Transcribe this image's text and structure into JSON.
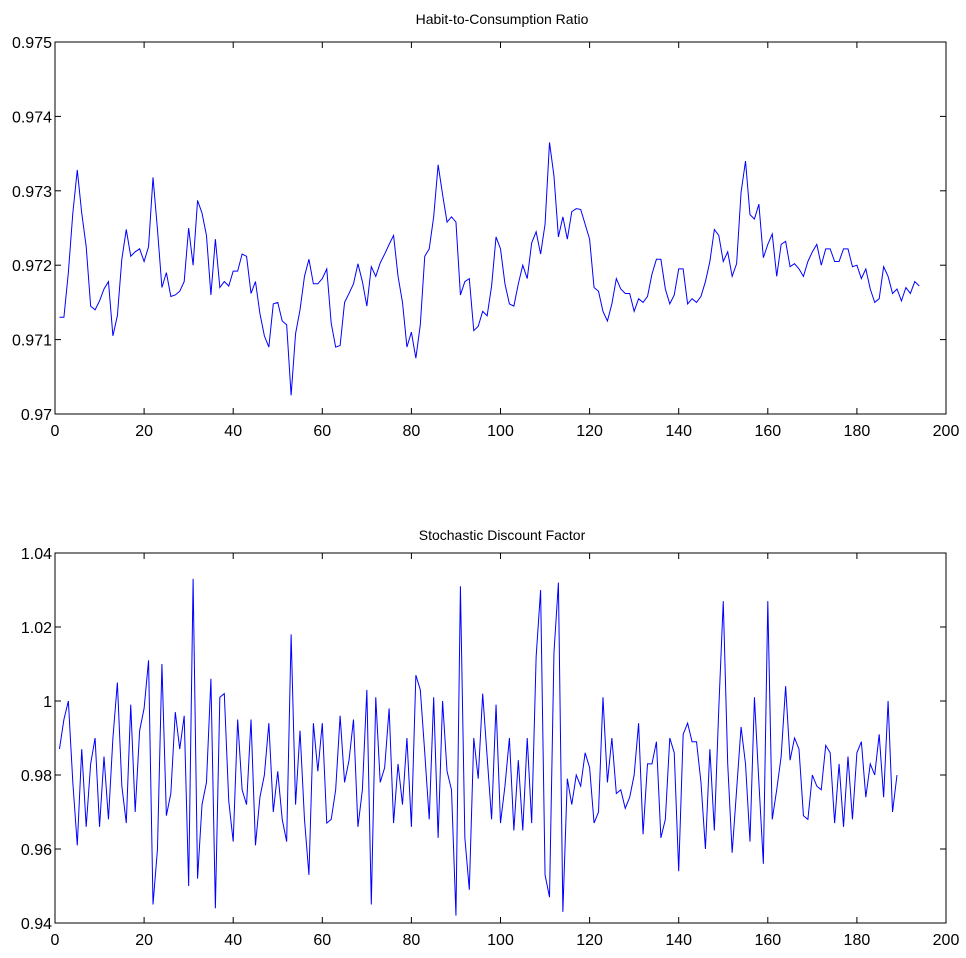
{
  "chart_data": [
    {
      "type": "line",
      "title": "Habit-to-Consumption Ratio",
      "xlabel": "",
      "ylabel": "",
      "xlim": [
        0,
        200
      ],
      "ylim": [
        0.97,
        0.975
      ],
      "xticks": [
        0,
        20,
        40,
        60,
        80,
        100,
        120,
        140,
        160,
        180,
        200
      ],
      "yticks": [
        0.97,
        0.971,
        0.972,
        0.973,
        0.974,
        0.975
      ],
      "ytick_labels": [
        "0.97",
        "0.971",
        "0.972",
        "0.973",
        "0.974",
        "0.975"
      ],
      "grid": false,
      "series": [
        {
          "color": "#0000ff",
          "x_start": 1,
          "values": [
            0.9713,
            0.9713,
            0.9719,
            0.9727,
            0.97328,
            0.9727,
            0.97225,
            0.97145,
            0.9714,
            0.97152,
            0.97168,
            0.97178,
            0.97105,
            0.97132,
            0.97208,
            0.97248,
            0.97212,
            0.97218,
            0.97222,
            0.97205,
            0.97225,
            0.97318,
            0.97248,
            0.9717,
            0.9719,
            0.97158,
            0.9716,
            0.97165,
            0.97178,
            0.9725,
            0.972,
            0.97287,
            0.9727,
            0.9724,
            0.9716,
            0.97235,
            0.9717,
            0.97178,
            0.97172,
            0.97192,
            0.97192,
            0.97215,
            0.97212,
            0.97162,
            0.97178,
            0.97135,
            0.97105,
            0.9709,
            0.97148,
            0.9715,
            0.97125,
            0.9712,
            0.97025,
            0.97108,
            0.9714,
            0.97185,
            0.97208,
            0.97175,
            0.97175,
            0.97182,
            0.97195,
            0.97122,
            0.9709,
            0.97092,
            0.9715,
            0.97162,
            0.97175,
            0.97202,
            0.97178,
            0.97145,
            0.97198,
            0.97185,
            0.97203,
            0.97215,
            0.97228,
            0.9724,
            0.97185,
            0.9715,
            0.9709,
            0.9711,
            0.97075,
            0.9712,
            0.97212,
            0.97222,
            0.97265,
            0.97335,
            0.97295,
            0.97258,
            0.97265,
            0.97258,
            0.9716,
            0.97178,
            0.97182,
            0.97112,
            0.97118,
            0.97138,
            0.97132,
            0.97172,
            0.97238,
            0.97222,
            0.97175,
            0.97148,
            0.97145,
            0.97175,
            0.972,
            0.97182,
            0.9723,
            0.97245,
            0.97215,
            0.97255,
            0.97365,
            0.9732,
            0.97238,
            0.97265,
            0.97235,
            0.97272,
            0.97276,
            0.97275,
            0.97255,
            0.97235,
            0.9717,
            0.97165,
            0.97138,
            0.97125,
            0.97148,
            0.97182,
            0.97168,
            0.97162,
            0.97162,
            0.97138,
            0.97155,
            0.9715,
            0.97158,
            0.97188,
            0.97208,
            0.97208,
            0.97168,
            0.97148,
            0.9716,
            0.97195,
            0.97195,
            0.97148,
            0.97155,
            0.9715,
            0.97158,
            0.97178,
            0.97205,
            0.97248,
            0.9724,
            0.97205,
            0.97218,
            0.97185,
            0.97202,
            0.97298,
            0.9734,
            0.97268,
            0.97262,
            0.97282,
            0.9721,
            0.97228,
            0.97242,
            0.97185,
            0.97228,
            0.97232,
            0.97198,
            0.97202,
            0.97195,
            0.97185,
            0.97205,
            0.97218,
            0.97228,
            0.972,
            0.97222,
            0.97222,
            0.97205,
            0.97205,
            0.97222,
            0.97222,
            0.97198,
            0.972,
            0.97182,
            0.97195,
            0.97168,
            0.9715,
            0.97155,
            0.97198,
            0.97185,
            0.97162,
            0.97168,
            0.97152,
            0.9717,
            0.97162,
            0.97178,
            0.97172
          ]
        }
      ]
    },
    {
      "type": "line",
      "title": "Stochastic Discount Factor",
      "xlabel": "",
      "ylabel": "",
      "xlim": [
        0,
        200
      ],
      "ylim": [
        0.94,
        1.04
      ],
      "xticks": [
        0,
        20,
        40,
        60,
        80,
        100,
        120,
        140,
        160,
        180,
        200
      ],
      "yticks": [
        0.94,
        0.96,
        0.98,
        1,
        1.02,
        1.04
      ],
      "ytick_labels": [
        "0.94",
        "0.96",
        "0.98",
        "1",
        "1.02",
        "1.04"
      ],
      "grid": false,
      "series": [
        {
          "color": "#0000ff",
          "x_start": 1,
          "values": [
            0.987,
            0.995,
            1.0,
            0.978,
            0.961,
            0.987,
            0.966,
            0.983,
            0.99,
            0.966,
            0.985,
            0.968,
            0.99,
            1.005,
            0.977,
            0.967,
            0.999,
            0.97,
            0.992,
            0.998,
            1.011,
            0.945,
            0.96,
            1.01,
            0.969,
            0.975,
            0.997,
            0.987,
            0.996,
            0.95,
            1.033,
            0.952,
            0.972,
            0.978,
            1.006,
            0.944,
            1.001,
            1.002,
            0.973,
            0.962,
            0.995,
            0.976,
            0.972,
            0.995,
            0.961,
            0.974,
            0.98,
            0.994,
            0.97,
            0.981,
            0.968,
            0.962,
            1.018,
            0.972,
            0.992,
            0.968,
            0.953,
            0.994,
            0.981,
            0.994,
            0.967,
            0.968,
            0.976,
            0.996,
            0.978,
            0.984,
            0.995,
            0.966,
            0.976,
            1.003,
            0.945,
            1.001,
            0.978,
            0.982,
            0.998,
            0.967,
            0.983,
            0.972,
            0.99,
            0.966,
            1.007,
            1.003,
            0.986,
            0.968,
            1.001,
            0.963,
            1.0,
            0.981,
            0.976,
            0.942,
            1.031,
            0.963,
            0.949,
            0.99,
            0.979,
            1.002,
            0.985,
            0.968,
            0.999,
            0.967,
            0.977,
            0.99,
            0.965,
            0.984,
            0.965,
            0.99,
            0.967,
            1.012,
            1.03,
            0.953,
            0.947,
            1.013,
            1.032,
            0.943,
            0.979,
            0.972,
            0.98,
            0.977,
            0.986,
            0.982,
            0.967,
            0.97,
            1.001,
            0.978,
            0.99,
            0.975,
            0.976,
            0.971,
            0.974,
            0.98,
            0.994,
            0.964,
            0.983,
            0.983,
            0.989,
            0.963,
            0.968,
            0.99,
            0.986,
            0.954,
            0.991,
            0.994,
            0.989,
            0.989,
            0.978,
            0.96,
            0.987,
            0.965,
            0.998,
            1.027,
            0.983,
            0.959,
            0.976,
            0.993,
            0.983,
            0.962,
            1.001,
            0.978,
            0.956,
            1.027,
            0.968,
            0.976,
            0.985,
            1.004,
            0.984,
            0.99,
            0.987,
            0.969,
            0.968,
            0.98,
            0.977,
            0.976,
            0.988,
            0.986,
            0.967,
            0.983,
            0.966,
            0.985,
            0.968,
            0.986,
            0.989,
            0.974,
            0.983,
            0.98,
            0.991,
            0.974,
            1.0,
            0.97,
            0.98
          ]
        }
      ]
    }
  ]
}
